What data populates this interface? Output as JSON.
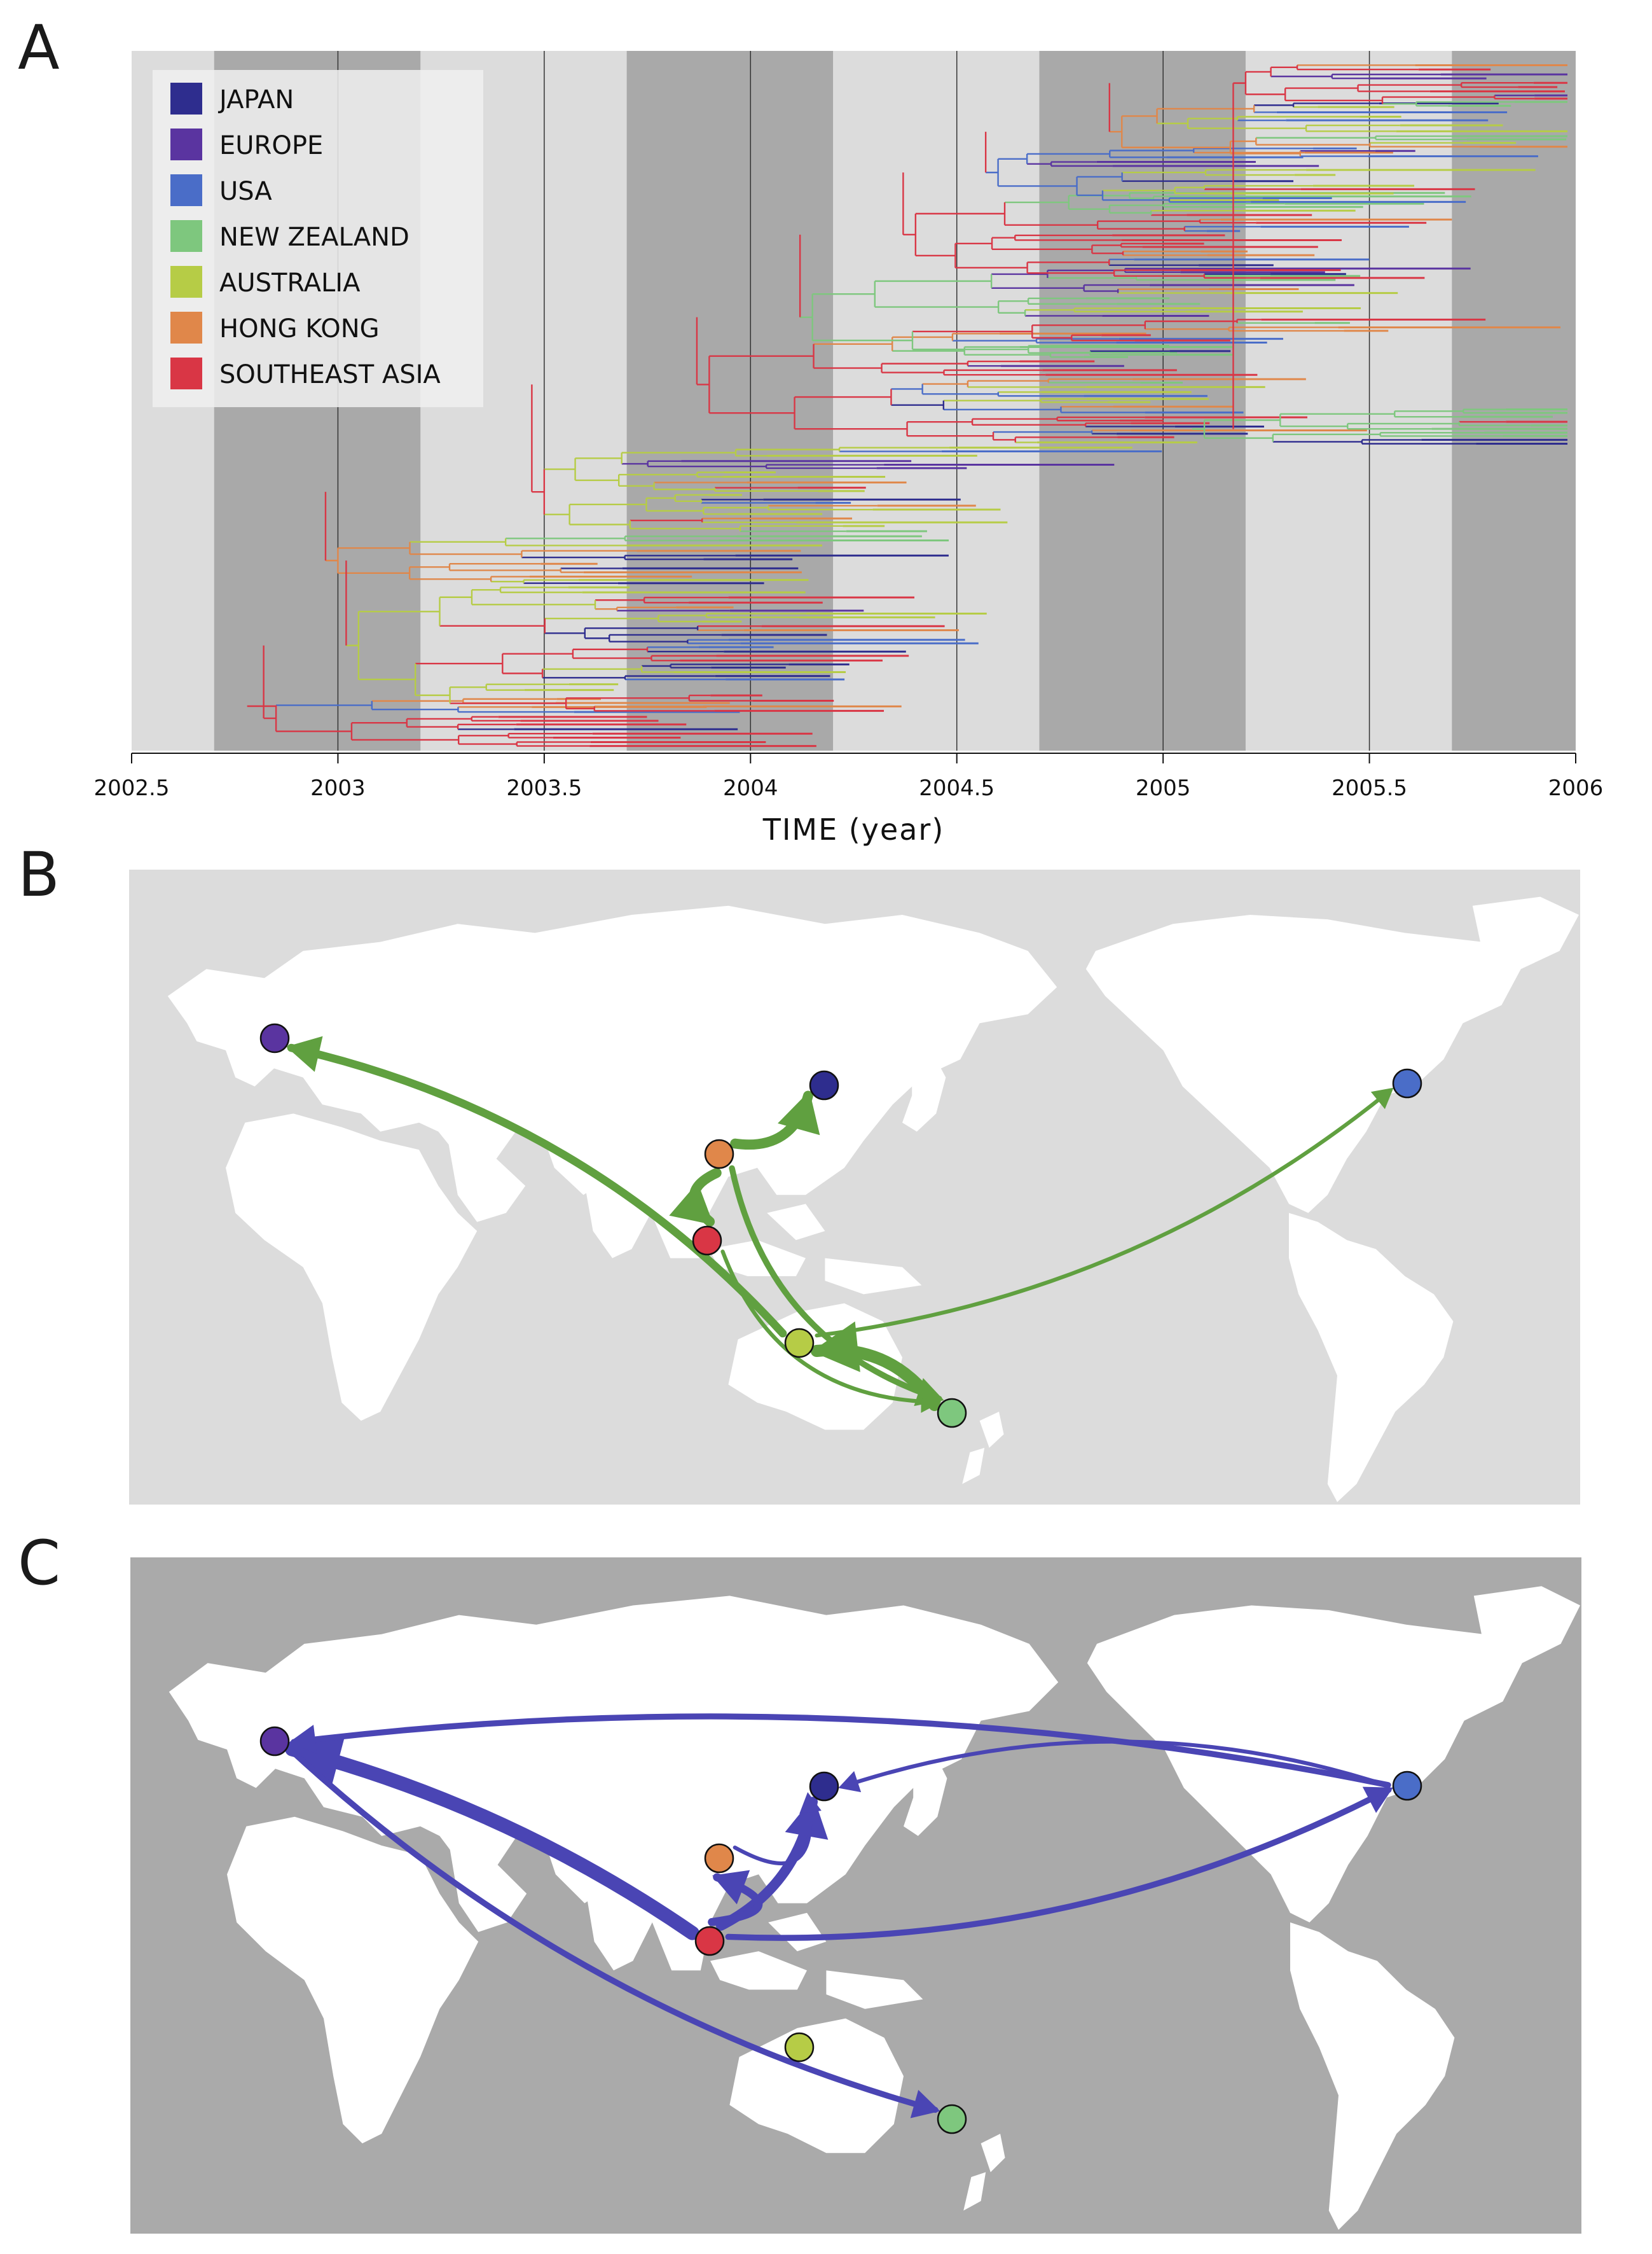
{
  "panels": {
    "a": "A",
    "b": "B",
    "c": "C"
  },
  "colors": {
    "JAPAN": "#2e2d8e",
    "EUROPE": "#5a34a0",
    "USA": "#4a6dc8",
    "NEW ZEALAND": "#7ec77e",
    "AUSTRALIA": "#b6cc46",
    "HONG KONG": "#e0874a",
    "SOUTHEAST ASIA": "#d93645",
    "panel_b_arrow": "#60a040",
    "panel_c_arrow": "#4a45b4",
    "panel_b_sea": "#dcdcdc",
    "panel_c_sea": "#aaaaaa",
    "band_dark": "#a9a9a9",
    "band_light": "#dcdcdc"
  },
  "legend": [
    "JAPAN",
    "EUROPE",
    "USA",
    "NEW ZEALAND",
    "AUSTRALIA",
    "HONG KONG",
    "SOUTHEAST ASIA"
  ],
  "chart_data": {
    "type": "line",
    "description_type": "time-scaled phylogenetic tree",
    "xlabel": "TIME (year)",
    "xlim": [
      2002.5,
      2006
    ],
    "xticks": [
      2002.5,
      2003,
      2003.5,
      2004,
      2004.5,
      2005,
      2005.5,
      2006
    ],
    "xtick_labels": [
      "2002.5",
      "2003",
      "2003.5",
      "2004",
      "2004.5",
      "2005",
      "2005.5",
      "2006"
    ],
    "vertical_lines": [
      2003,
      2003.5,
      2004,
      2004.5,
      2005,
      2005.5
    ],
    "shaded_bands": [
      [
        2002.7,
        2003.2
      ],
      [
        2003.7,
        2004.2
      ],
      [
        2004.7,
        2005.2
      ],
      [
        2005.7,
        2006
      ]
    ],
    "legend_placement": "top-left",
    "root_year": 2002.8,
    "series": [
      {
        "name": "SOUTHEAST ASIA"
      },
      {
        "name": "HONG KONG"
      },
      {
        "name": "AUSTRALIA"
      },
      {
        "name": "NEW ZEALAND"
      },
      {
        "name": "USA"
      },
      {
        "name": "EUROPE"
      },
      {
        "name": "JAPAN"
      }
    ]
  },
  "map_nodes": [
    {
      "region": "EUROPE"
    },
    {
      "region": "JAPAN"
    },
    {
      "region": "HONG KONG"
    },
    {
      "region": "SOUTHEAST ASIA"
    },
    {
      "region": "USA"
    },
    {
      "region": "AUSTRALIA"
    },
    {
      "region": "NEW ZEALAND"
    }
  ],
  "panel_b_migrations": [
    {
      "from": "HONG KONG",
      "to": "SOUTHEAST ASIA",
      "weight": 4
    },
    {
      "from": "HONG KONG",
      "to": "JAPAN",
      "weight": 4
    },
    {
      "from": "HONG KONG",
      "to": "NEW ZEALAND",
      "weight": 2
    },
    {
      "from": "SOUTHEAST ASIA",
      "to": "NEW ZEALAND",
      "weight": 1
    },
    {
      "from": "AUSTRALIA",
      "to": "EUROPE",
      "weight": 3
    },
    {
      "from": "AUSTRALIA",
      "to": "USA",
      "weight": 1
    },
    {
      "from": "NEW ZEALAND",
      "to": "AUSTRALIA",
      "weight": 5
    }
  ],
  "panel_c_migrations": [
    {
      "from": "SOUTHEAST ASIA",
      "to": "EUROPE",
      "weight": 6
    },
    {
      "from": "SOUTHEAST ASIA",
      "to": "JAPAN",
      "weight": 4
    },
    {
      "from": "SOUTHEAST ASIA",
      "to": "HONG KONG",
      "weight": 3
    },
    {
      "from": "SOUTHEAST ASIA",
      "to": "USA",
      "weight": 2
    },
    {
      "from": "HONG KONG",
      "to": "JAPAN",
      "weight": 1
    },
    {
      "from": "USA",
      "to": "EUROPE",
      "weight": 2
    },
    {
      "from": "USA",
      "to": "JAPAN",
      "weight": 1
    },
    {
      "from": "EUROPE",
      "to": "NEW ZEALAND",
      "weight": 2
    }
  ]
}
